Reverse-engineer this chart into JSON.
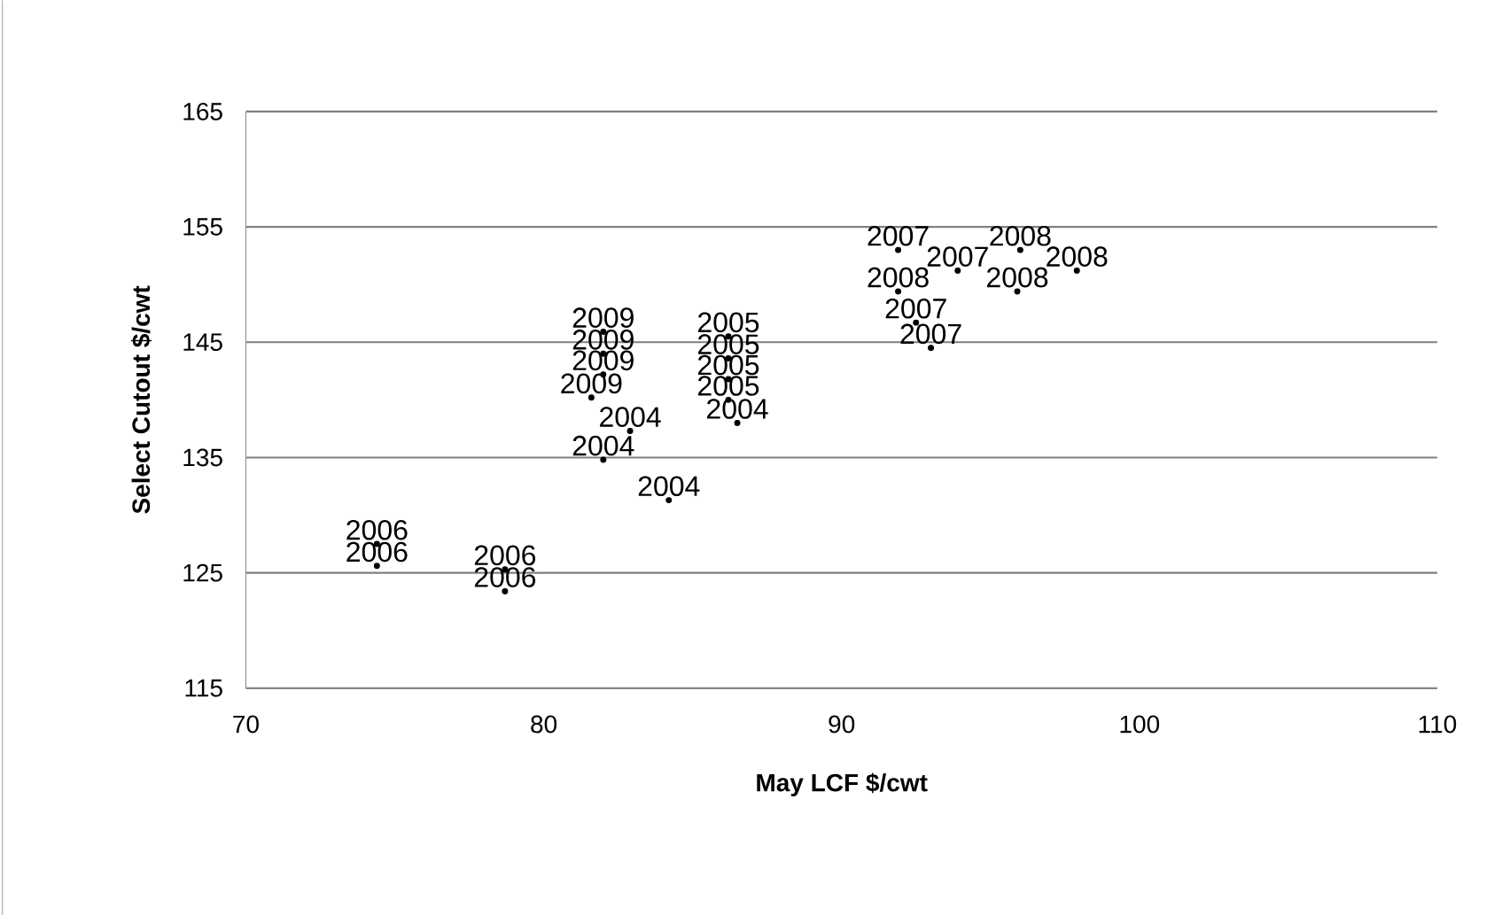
{
  "chart_data": {
    "type": "scatter",
    "xlabel": "May LCF $/cwt",
    "ylabel": "Select Cutout $/cwt",
    "grid": "y",
    "marker": "circle",
    "series": [
      {
        "name": "2006",
        "color": "#000000",
        "x": [
          74.4,
          74.4,
          78.7,
          78.7
        ],
        "values": [
          127.5,
          125.6,
          125.3,
          123.4
        ]
      },
      {
        "name": "2009",
        "color": "#000000",
        "x": [
          82.0,
          82.0,
          82.0,
          81.6
        ],
        "values": [
          145.9,
          144.0,
          142.2,
          140.2
        ]
      },
      {
        "name": "2005",
        "color": "#000000",
        "x": [
          86.2,
          86.2,
          86.2,
          86.2
        ],
        "values": [
          145.5,
          143.6,
          141.8,
          140.0
        ]
      },
      {
        "name": "2004",
        "color": "#000000",
        "x": [
          82.9,
          86.5,
          82.0,
          84.2
        ],
        "values": [
          137.3,
          138.0,
          134.8,
          131.3
        ]
      },
      {
        "name": "2007",
        "color": "#000000",
        "x": [
          91.9,
          93.9,
          92.5,
          93.0
        ],
        "values": [
          153.0,
          151.2,
          146.7,
          144.5
        ]
      },
      {
        "name": "2008",
        "color": "#000000",
        "x": [
          96.0,
          97.9,
          91.9,
          95.9
        ],
        "values": [
          153.0,
          151.2,
          149.4,
          149.4
        ]
      }
    ],
    "xlim": [
      70,
      110
    ],
    "xticks": [
      70,
      80,
      90,
      100,
      110
    ],
    "ylim": [
      115,
      165
    ],
    "yticks": [
      115,
      125,
      135,
      145,
      155,
      165
    ]
  }
}
